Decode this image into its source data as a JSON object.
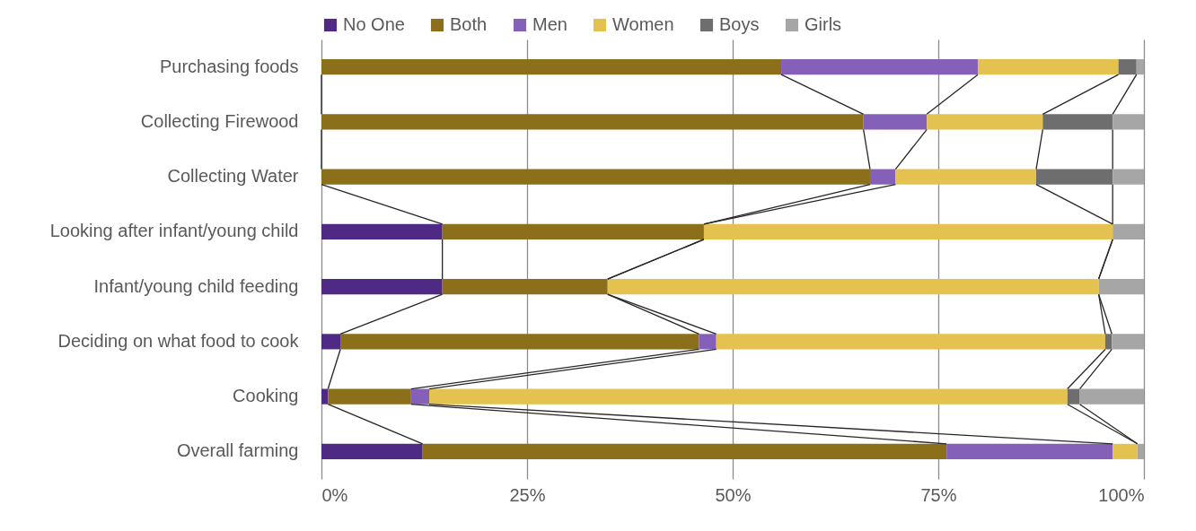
{
  "chart_data": {
    "type": "bar",
    "orientation": "horizontal",
    "stacked": true,
    "categories": [
      "Purchasing foods",
      "Collecting Firewood",
      "Collecting Water",
      "Looking after infant/young child",
      "Infant/young child feeding",
      "Deciding on what food to cook",
      "Cooking",
      "Overall farming"
    ],
    "series": [
      {
        "name": "No One",
        "color": "#4e2a84",
        "values": [
          0,
          0,
          0,
          14.7,
          14.7,
          2.3,
          0.8,
          12.3
        ]
      },
      {
        "name": "Both",
        "color": "#8b6f1a",
        "values": [
          55.9,
          65.9,
          66.7,
          31.8,
          20.1,
          43.6,
          10.1,
          63.7
        ]
      },
      {
        "name": "Men",
        "color": "#8560b8",
        "values": [
          23.9,
          7.7,
          3.1,
          0,
          0,
          2.1,
          2.2,
          20.2
        ]
      },
      {
        "name": "Women",
        "color": "#e3c250",
        "values": [
          17.1,
          14.1,
          17.1,
          49.7,
          59.7,
          47.3,
          77.6,
          3.0
        ]
      },
      {
        "name": "Boys",
        "color": "#6e6e6e",
        "values": [
          2.2,
          8.5,
          9.3,
          0,
          0,
          0.8,
          1.5,
          0
        ]
      },
      {
        "name": "Girls",
        "color": "#a6a6a6",
        "values": [
          0.9,
          3.8,
          3.8,
          3.8,
          5.5,
          3.9,
          7.8,
          0.8
        ]
      }
    ],
    "xlim": [
      0,
      100
    ],
    "xticks": [
      {
        "value": 0,
        "label": "0%"
      },
      {
        "value": 25,
        "label": "25%"
      },
      {
        "value": 50,
        "label": "50%"
      },
      {
        "value": 75,
        "label": "75%"
      },
      {
        "value": 100,
        "label": "100%"
      }
    ],
    "grid": "x",
    "legend": "top"
  }
}
